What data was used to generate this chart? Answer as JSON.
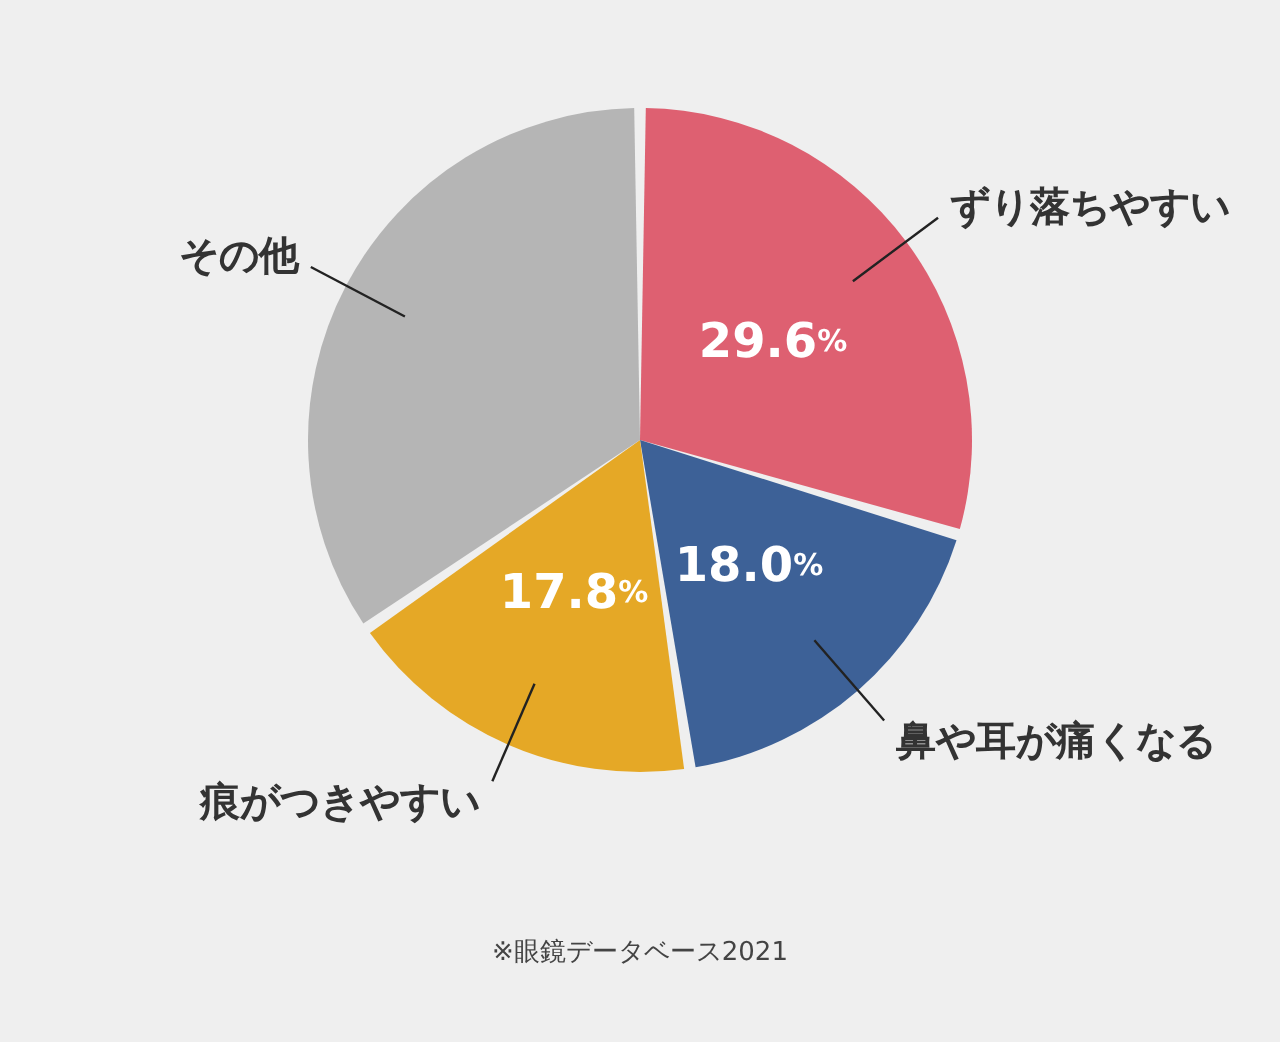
{
  "chart_data": {
    "type": "pie",
    "categories": [
      "ずり落ちやすい",
      "鼻や耳が痛くなる",
      "痕がつきやすい",
      "その他"
    ],
    "values": [
      29.6,
      18.0,
      17.8,
      34.6
    ],
    "colors": [
      "#de6071",
      "#3d6197",
      "#e5a826",
      "#b5b5b5"
    ],
    "value_labels": [
      "29.6%",
      "18.0%",
      "17.8%",
      null
    ],
    "annotations": [
      "※眼鏡データベース2021"
    ]
  }
}
